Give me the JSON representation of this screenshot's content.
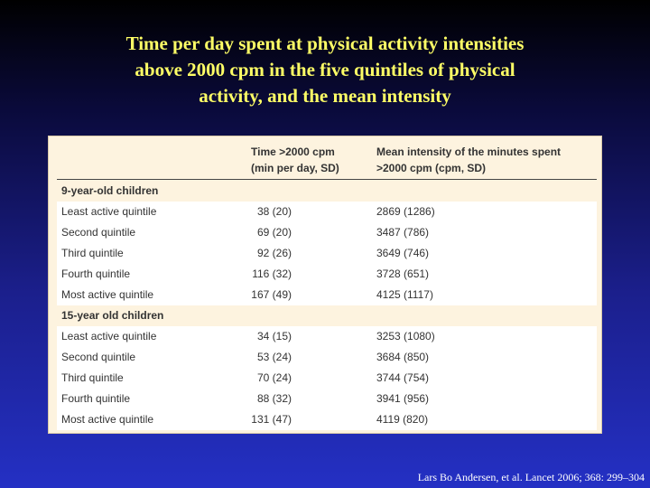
{
  "title": {
    "line1": "Time per day spent at physical activity intensities",
    "line2": "above 2000 cpm in the five quintiles of physical",
    "line3": "activity, and the mean intensity"
  },
  "table": {
    "col1_header": {
      "line1": "Time >2000 cpm",
      "line2": "(min per day, SD)"
    },
    "col2_header": {
      "line1": "Mean intensity of the minutes spent",
      "line2": ">2000 cpm (cpm, SD)"
    },
    "groups": [
      {
        "label": "9-year-old children",
        "rows": [
          {
            "label": "Least active quintile",
            "time": "38 (20)",
            "intensity": "2869 (1286)"
          },
          {
            "label": "Second quintile",
            "time": "69 (20)",
            "intensity": "3487 (786)"
          },
          {
            "label": "Third quintile",
            "time": "92 (26)",
            "intensity": "3649 (746)"
          },
          {
            "label": "Fourth quintile",
            "time": "116 (32)",
            "intensity": "3728 (651)"
          },
          {
            "label": "Most active quintile",
            "time": "167 (49)",
            "intensity": "4125 (1117)"
          }
        ]
      },
      {
        "label": "15-year old children",
        "rows": [
          {
            "label": "Least active quintile",
            "time": "34 (15)",
            "intensity": "3253 (1080)"
          },
          {
            "label": "Second quintile",
            "time": "53 (24)",
            "intensity": "3684 (850)"
          },
          {
            "label": "Third quintile",
            "time": "70 (24)",
            "intensity": "3744 (754)"
          },
          {
            "label": "Fourth quintile",
            "time": "88 (32)",
            "intensity": "3941 (956)"
          },
          {
            "label": "Most active quintile",
            "time": "131 (47)",
            "intensity": "4119 (820)"
          }
        ]
      }
    ]
  },
  "citation": "Lars Bo Andersen, et al. Lancet 2006; 368: 299–304"
}
